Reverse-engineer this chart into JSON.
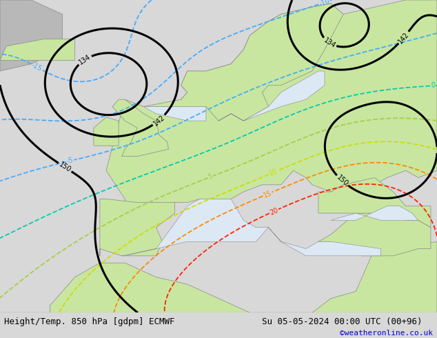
{
  "title_left": "Height/Temp. 850 hPa [gdpm] ECMWF",
  "title_right": "Su 05-05-2024 00:00 UTC (00+96)",
  "credit": "©weatheronline.co.uk",
  "footer_bg": "#d8d8d8",
  "title_fontsize": 9,
  "credit_color": "#0000cc",
  "credit_fontsize": 8,
  "fig_width": 6.34,
  "fig_height": 4.9,
  "dpi": 100,
  "land_green": [
    200,
    230,
    160
  ],
  "land_gray": [
    180,
    180,
    180
  ],
  "sea_white": [
    235,
    235,
    245
  ],
  "border_color": [
    140,
    140,
    140
  ],
  "extent_lon": [
    -25,
    45
  ],
  "extent_lat": [
    28,
    72
  ]
}
